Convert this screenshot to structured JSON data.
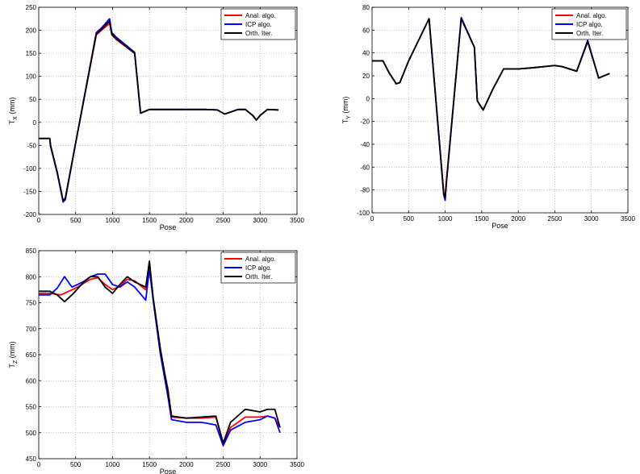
{
  "legend_entries": [
    "Anal. algo.",
    "ICP algo.",
    "Orth. Iter."
  ],
  "series_colors": {
    "Anal. algo.": "#ff0000",
    "ICP algo.": "#0000ff",
    "Orth. Iter.": "#000000"
  },
  "chart_data": [
    {
      "type": "line",
      "xlabel": "Pose",
      "ylabel": "T_X (mm)",
      "ylabel_main": "T",
      "ylabel_sub": "X",
      "ylabel_unit": " (mm)",
      "xlim": [
        0,
        3500
      ],
      "ylim": [
        -200,
        250
      ],
      "xticks": [
        0,
        500,
        1000,
        1500,
        2000,
        2500,
        3000,
        3500
      ],
      "yticks": [
        -200,
        -150,
        -100,
        -50,
        0,
        50,
        100,
        150,
        200,
        250
      ],
      "grid": true,
      "legend_position": "top-right",
      "series": [
        {
          "name": "Anal. algo.",
          "x": [
            0,
            150,
            160,
            250,
            330,
            360,
            500,
            780,
            850,
            960,
            990,
            1050,
            1300,
            1380,
            1500,
            1800,
            2000,
            2250,
            2420,
            2520,
            2700,
            2800,
            2900,
            2950,
            3000,
            3100,
            3250
          ],
          "y": [
            -35,
            -35,
            -50,
            -108,
            -170,
            -165,
            -45,
            190,
            200,
            215,
            190,
            180,
            150,
            20,
            28,
            28,
            28,
            28,
            27,
            18,
            28,
            28,
            15,
            5,
            15,
            28,
            27
          ]
        },
        {
          "name": "ICP algo.",
          "x": [
            0,
            150,
            160,
            250,
            330,
            360,
            500,
            780,
            850,
            960,
            990,
            1050,
            1300,
            1380,
            1500,
            1800,
            2000,
            2250,
            2420,
            2520,
            2700,
            2800,
            2900,
            2950,
            3000,
            3100,
            3250
          ],
          "y": [
            -35,
            -35,
            -52,
            -110,
            -173,
            -168,
            -45,
            195,
            205,
            225,
            195,
            185,
            152,
            20,
            28,
            28,
            28,
            28,
            27,
            18,
            28,
            28,
            15,
            5,
            15,
            28,
            27
          ]
        },
        {
          "name": "Orth. Iter.",
          "x": [
            0,
            150,
            160,
            250,
            330,
            360,
            500,
            780,
            850,
            960,
            990,
            1050,
            1300,
            1380,
            1500,
            1800,
            2000,
            2250,
            2420,
            2520,
            2700,
            2800,
            2900,
            2950,
            3000,
            3100,
            3250
          ],
          "y": [
            -35,
            -35,
            -50,
            -108,
            -170,
            -165,
            -45,
            192,
            202,
            220,
            192,
            182,
            150,
            20,
            28,
            28,
            28,
            28,
            27,
            18,
            28,
            28,
            15,
            5,
            15,
            28,
            27
          ]
        }
      ]
    },
    {
      "type": "line",
      "xlabel": "Pose",
      "ylabel": "T_Y (mm)",
      "ylabel_main": "T",
      "ylabel_sub": "Y",
      "ylabel_unit": " (mm)",
      "xlim": [
        0,
        3500
      ],
      "ylim": [
        -100,
        80
      ],
      "xticks": [
        0,
        500,
        1000,
        1500,
        2000,
        2500,
        3000,
        3500
      ],
      "yticks": [
        -100,
        -80,
        -60,
        -40,
        -20,
        0,
        20,
        40,
        60,
        80
      ],
      "grid": true,
      "legend_position": "top-right",
      "series": [
        {
          "name": "Anal. algo.",
          "x": [
            0,
            150,
            230,
            330,
            380,
            500,
            780,
            980,
            1000,
            1020,
            1220,
            1400,
            1440,
            1520,
            1650,
            1750,
            1800,
            2000,
            2200,
            2500,
            2600,
            2800,
            2950,
            3100,
            3250
          ],
          "y": [
            33,
            33,
            23,
            13,
            14,
            33,
            70,
            -82,
            -86,
            -70,
            70,
            45,
            -2,
            -10,
            8,
            20,
            26,
            26,
            27,
            29,
            28,
            24,
            50,
            18,
            22
          ]
        },
        {
          "name": "ICP algo.",
          "x": [
            0,
            150,
            230,
            330,
            380,
            500,
            780,
            980,
            1000,
            1020,
            1220,
            1400,
            1440,
            1520,
            1650,
            1750,
            1800,
            2000,
            2200,
            2500,
            2600,
            2800,
            2950,
            3100,
            3250
          ],
          "y": [
            33,
            33,
            23,
            13,
            14,
            33,
            70,
            -84,
            -89,
            -72,
            71,
            45,
            -2,
            -10,
            8,
            20,
            26,
            26,
            27,
            29,
            28,
            24,
            51,
            18,
            22
          ]
        },
        {
          "name": "Orth. Iter.",
          "x": [
            0,
            150,
            230,
            330,
            380,
            500,
            780,
            980,
            1000,
            1020,
            1220,
            1400,
            1440,
            1520,
            1650,
            1750,
            1800,
            2000,
            2200,
            2500,
            2600,
            2800,
            2950,
            3100,
            3250
          ],
          "y": [
            33,
            33,
            23,
            13,
            14,
            33,
            70,
            -83,
            -87,
            -71,
            70,
            45,
            -2,
            -10,
            8,
            20,
            26,
            26,
            27,
            29,
            28,
            24,
            50,
            18,
            22
          ]
        }
      ]
    },
    {
      "type": "line",
      "xlabel": "Pose",
      "ylabel": "T_Z (mm)",
      "ylabel_main": "T",
      "ylabel_sub": "Z",
      "ylabel_unit": " (mm)",
      "xlim": [
        0,
        3500
      ],
      "ylim": [
        450,
        850
      ],
      "xticks": [
        0,
        500,
        1000,
        1500,
        2000,
        2500,
        3000,
        3500
      ],
      "yticks": [
        450,
        500,
        550,
        600,
        650,
        700,
        750,
        800,
        850
      ],
      "grid": true,
      "legend_position": "top-right",
      "series": [
        {
          "name": "Anal. algo.",
          "x": [
            0,
            150,
            300,
            500,
            700,
            800,
            900,
            1000,
            1100,
            1200,
            1300,
            1450,
            1500,
            1550,
            1650,
            1750,
            1800,
            2000,
            2200,
            2400,
            2500,
            2600,
            2800,
            3000,
            3100,
            3200,
            3270
          ],
          "y": [
            768,
            768,
            765,
            778,
            795,
            798,
            785,
            775,
            782,
            795,
            792,
            775,
            825,
            760,
            650,
            585,
            530,
            528,
            528,
            530,
            478,
            510,
            530,
            530,
            532,
            528,
            510
          ]
        },
        {
          "name": "ICP algo.",
          "x": [
            0,
            150,
            250,
            350,
            450,
            600,
            700,
            800,
            900,
            1000,
            1100,
            1200,
            1300,
            1450,
            1500,
            1550,
            1650,
            1750,
            1800,
            2000,
            2200,
            2400,
            2500,
            2600,
            2800,
            3000,
            3100,
            3200,
            3270
          ],
          "y": [
            765,
            765,
            778,
            800,
            780,
            790,
            800,
            805,
            805,
            785,
            780,
            790,
            780,
            755,
            815,
            755,
            650,
            570,
            525,
            520,
            520,
            515,
            475,
            505,
            520,
            525,
            532,
            528,
            500
          ]
        },
        {
          "name": "Orth. Iter.",
          "x": [
            0,
            150,
            250,
            350,
            450,
            600,
            700,
            800,
            900,
            1000,
            1100,
            1200,
            1300,
            1450,
            1500,
            1550,
            1650,
            1750,
            1800,
            2000,
            2200,
            2400,
            2500,
            2600,
            2800,
            3000,
            3100,
            3200,
            3270
          ],
          "y": [
            772,
            772,
            765,
            752,
            765,
            788,
            800,
            800,
            780,
            768,
            785,
            800,
            790,
            780,
            830,
            760,
            660,
            580,
            532,
            528,
            530,
            532,
            480,
            520,
            545,
            540,
            545,
            545,
            510
          ]
        }
      ]
    }
  ]
}
